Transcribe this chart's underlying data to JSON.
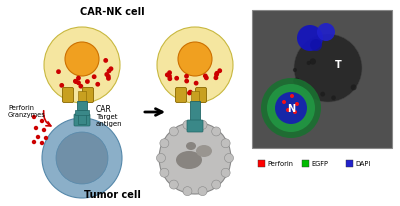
{
  "title": "CAR-NK cell",
  "tumor_label": "Tumor cell",
  "car_label": "CAR",
  "target_antigen_label": "Target\nantigen",
  "perforin_granzymes_label": "Perforin\nGranzymes",
  "legend_items": [
    {
      "label": "Perforin",
      "color": "#ff0000"
    },
    {
      "label": "EGFP",
      "color": "#00bb00"
    },
    {
      "label": "DAPI",
      "color": "#2222cc"
    }
  ],
  "T_label": "T",
  "N_label": "N",
  "bg_color": "#ffffff",
  "nk_outer_color": "#f5e6a0",
  "nk_outer_edge": "#c8b840",
  "nk_inner_color": "#f0a020",
  "nk_inner_edge": "#cc7000",
  "granule_color": "#cc0000",
  "car_gold_color": "#c8a020",
  "car_gold_edge": "#886600",
  "receptor_teal": "#3a8888",
  "receptor_teal_edge": "#226666",
  "tumor_fill": "#8bafc8",
  "tumor_fill_edge": "#5588aa",
  "tumor_inner": "#7090a8",
  "dead_tumor_fill": "#c0bfbe",
  "dead_tumor_edge": "#888888",
  "dead_tumor_inner": "#888480",
  "dead_tumor_inner2": "#999590",
  "arrow_red": "#cc0000",
  "black": "#000000",
  "micro_bg": "#555555",
  "micro_edge": "#888888",
  "nk_green": "#228844",
  "nk_blue": "#1a1acc",
  "tumor_dark": "#2a2a2a",
  "blob_blue": "#1515bb"
}
